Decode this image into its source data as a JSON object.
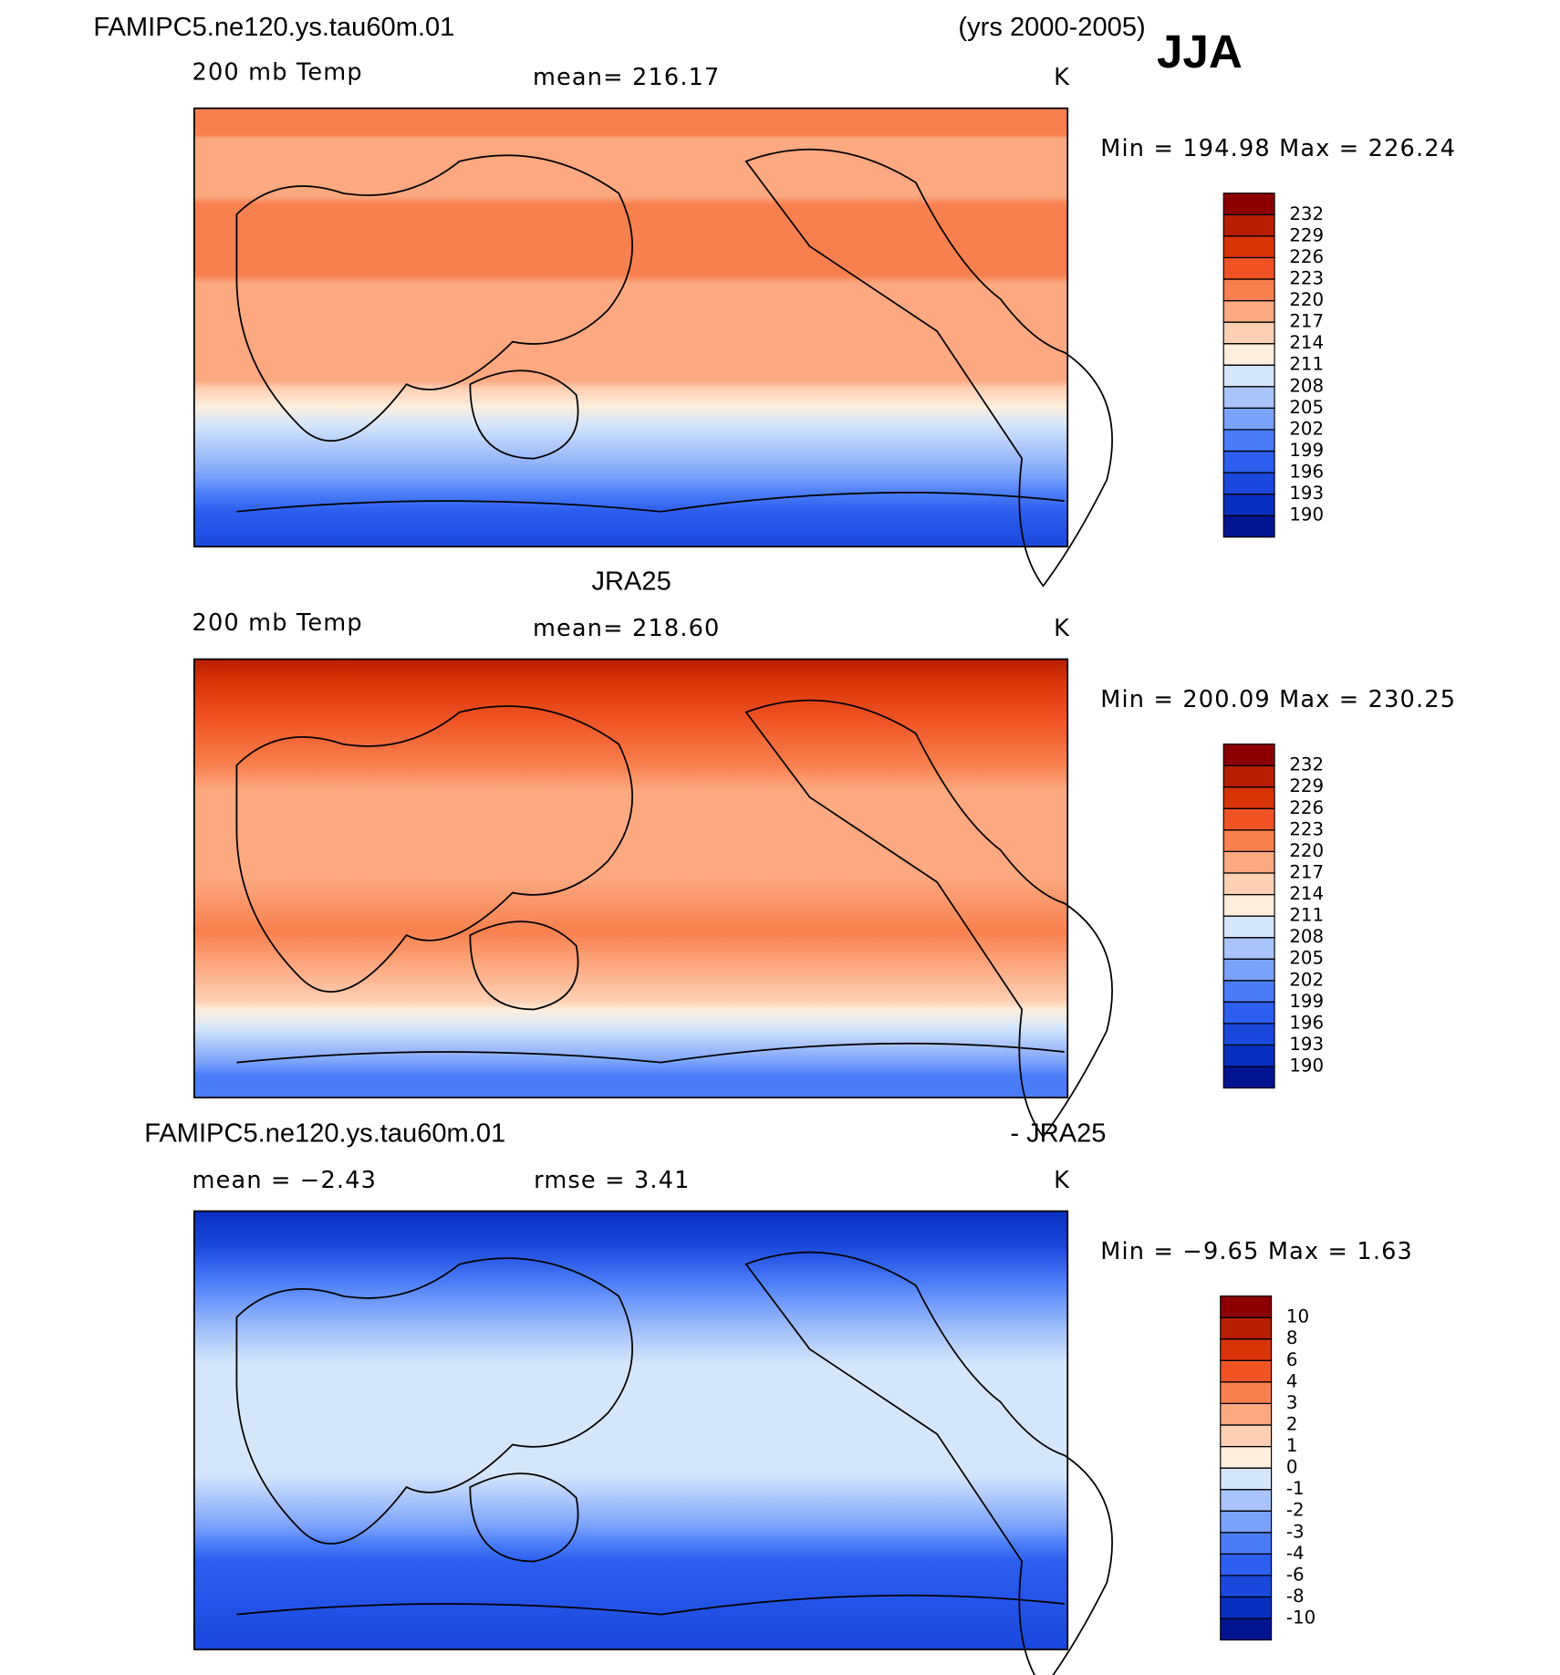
{
  "header": {
    "title": "FAMIPC5.ne120.ys.tau60m.01",
    "years": "(yrs 2000-2005)",
    "season": "JJA"
  },
  "panels": [
    {
      "variable": "200 mb Temp",
      "stat_left": "mean= 216.17",
      "units": "K",
      "minmax": "Min =  194.98  Max =  226.24",
      "colorbar": {
        "levels": [
          190,
          193,
          196,
          199,
          202,
          205,
          208,
          211,
          214,
          217,
          220,
          223,
          226,
          229,
          232
        ],
        "colors": [
          "#001490",
          "#0830c0",
          "#1a48dc",
          "#2c5ef0",
          "#4a7cf8",
          "#7aa2fa",
          "#a8c4fa",
          "#d6e6fa",
          "#fdeedd",
          "#fdd0b4",
          "#fca880",
          "#f8804e",
          "#f05424",
          "#d83408",
          "#b81e00",
          "#8c0000"
        ]
      }
    },
    {
      "title": "JRA25",
      "variable": "200 mb Temp",
      "stat_left": "mean= 218.60",
      "units": "K",
      "minmax": "Min =  200.09  Max =  230.25",
      "colorbar": {
        "levels": [
          190,
          193,
          196,
          199,
          202,
          205,
          208,
          211,
          214,
          217,
          220,
          223,
          226,
          229,
          232
        ],
        "colors": [
          "#001490",
          "#0830c0",
          "#1a48dc",
          "#2c5ef0",
          "#4a7cf8",
          "#7aa2fa",
          "#a8c4fa",
          "#d6e6fa",
          "#fdeedd",
          "#fdd0b4",
          "#fca880",
          "#f8804e",
          "#f05424",
          "#d83408",
          "#b81e00",
          "#8c0000"
        ]
      }
    },
    {
      "title": "FAMIPC5.ne120.ys.tau60m.01",
      "title_right": "- JRA25",
      "stat_left": "mean =   −2.43",
      "stat_mid": "rmse =    3.41",
      "units": "K",
      "minmax": "Min =   −9.65  Max =     1.63",
      "colorbar": {
        "levels": [
          -10,
          -8,
          -6,
          -4,
          -3,
          -2,
          -1,
          0,
          1,
          2,
          3,
          4,
          6,
          8,
          10
        ],
        "colors": [
          "#001490",
          "#0830c0",
          "#1a48dc",
          "#2c5ef0",
          "#4a7cf8",
          "#7aa2fa",
          "#a8c4fa",
          "#d6e6fa",
          "#fdeedd",
          "#fdd0b4",
          "#fca880",
          "#f8804e",
          "#f05424",
          "#d83408",
          "#b81e00",
          "#8c0000"
        ]
      }
    }
  ]
}
